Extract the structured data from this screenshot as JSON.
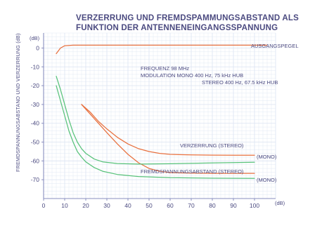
{
  "chart_data": {
    "type": "line",
    "title": [
      "VERZERRUNG UND FREMDSPAMMUNGSABSTAND ALS",
      "FUNKTION DER ANTENNENEINGANGSSPANNUNG"
    ],
    "ylabel": "FREMDSPANNUNGSABSTAND UND VERZERRUNG (dB)",
    "y_unit": "(dB)",
    "x_unit": "(dB)",
    "xlim": [
      0,
      110
    ],
    "ylim": [
      -80,
      8
    ],
    "x_ticks": [
      "0",
      "10",
      "20",
      "30",
      "40",
      "50",
      "60",
      "70",
      "80",
      "90",
      "100"
    ],
    "y_ticks": [
      "0",
      "-10",
      "-20",
      "-30",
      "-40",
      "-50",
      "-60",
      "-70"
    ],
    "grid": true,
    "annotations": [
      "FREQUENZ 98 MHz",
      "MODULATION MONO    400 Hz, 75 kHz HUB",
      "STEREO    400 Hz, 67.5 kHz HUB"
    ],
    "colors": {
      "orange": "#e8713f",
      "green": "#58c27a",
      "grid": "#dfe6f3",
      "axis": "#8a8fbf",
      "text": "#4b4a80"
    },
    "series": [
      {
        "name": "AUSGANGSPEGEL",
        "color": "#e8713f",
        "points": [
          [
            6,
            -3
          ],
          [
            8,
            0
          ],
          [
            10,
            1.2
          ],
          [
            14,
            1.5
          ],
          [
            30,
            1.5
          ],
          [
            60,
            1.5
          ],
          [
            90,
            1.5
          ],
          [
            106,
            1.5
          ]
        ]
      },
      {
        "name": "VERZERRUNG (STEREO)",
        "color": "#e8713f",
        "points": [
          [
            18,
            -30
          ],
          [
            22,
            -34
          ],
          [
            26,
            -39
          ],
          [
            30,
            -43
          ],
          [
            35,
            -47.5
          ],
          [
            40,
            -51
          ],
          [
            45,
            -53.5
          ],
          [
            50,
            -55
          ],
          [
            55,
            -56
          ],
          [
            60,
            -56.5
          ],
          [
            70,
            -56.8
          ],
          [
            80,
            -56.9
          ],
          [
            90,
            -57
          ],
          [
            100,
            -57
          ]
        ]
      },
      {
        "name": "(MONO)",
        "color": "#e8713f",
        "points": [
          [
            18,
            -30
          ],
          [
            22,
            -35
          ],
          [
            26,
            -40
          ],
          [
            30,
            -45
          ],
          [
            35,
            -51
          ],
          [
            40,
            -56.5
          ],
          [
            45,
            -61
          ],
          [
            50,
            -64
          ],
          [
            55,
            -65.5
          ],
          [
            60,
            -66.2
          ],
          [
            70,
            -66.5
          ],
          [
            80,
            -66.6
          ],
          [
            100,
            -66.6
          ]
        ]
      },
      {
        "name": "(MONO)",
        "color": "#58c27a",
        "points": [
          [
            6,
            -15
          ],
          [
            8,
            -22
          ],
          [
            10,
            -30
          ],
          [
            12,
            -38
          ],
          [
            14,
            -45
          ],
          [
            16,
            -50
          ],
          [
            18,
            -53.5
          ],
          [
            20,
            -56
          ],
          [
            24,
            -59
          ],
          [
            28,
            -60.5
          ],
          [
            35,
            -61.4
          ],
          [
            45,
            -61.7
          ],
          [
            60,
            -61.5
          ],
          [
            80,
            -61.1
          ],
          [
            100,
            -60.7
          ]
        ]
      },
      {
        "name": "FREMDSPANNUNGSABSTAND (STEREO)",
        "color": "#58c27a",
        "points": [
          [
            6,
            -20
          ],
          [
            8,
            -28
          ],
          [
            10,
            -36
          ],
          [
            12,
            -44
          ],
          [
            14,
            -50
          ],
          [
            16,
            -55
          ],
          [
            18,
            -58
          ],
          [
            20,
            -60.5
          ],
          [
            24,
            -63.5
          ],
          [
            28,
            -65.5
          ],
          [
            35,
            -67.2
          ],
          [
            45,
            -68.3
          ],
          [
            60,
            -68.9
          ],
          [
            80,
            -69.2
          ],
          [
            100,
            -69.3
          ]
        ]
      }
    ],
    "series_labels": {
      "output": "AUSGANGSPEGEL",
      "distortion_stereo": "VERZERRUNG (STEREO)",
      "distortion_mono": "(MONO)",
      "noise_stereo": "FREMDSPANNUNGSABSTAND (STEREO)",
      "noise_mono": "(MONO)"
    }
  }
}
